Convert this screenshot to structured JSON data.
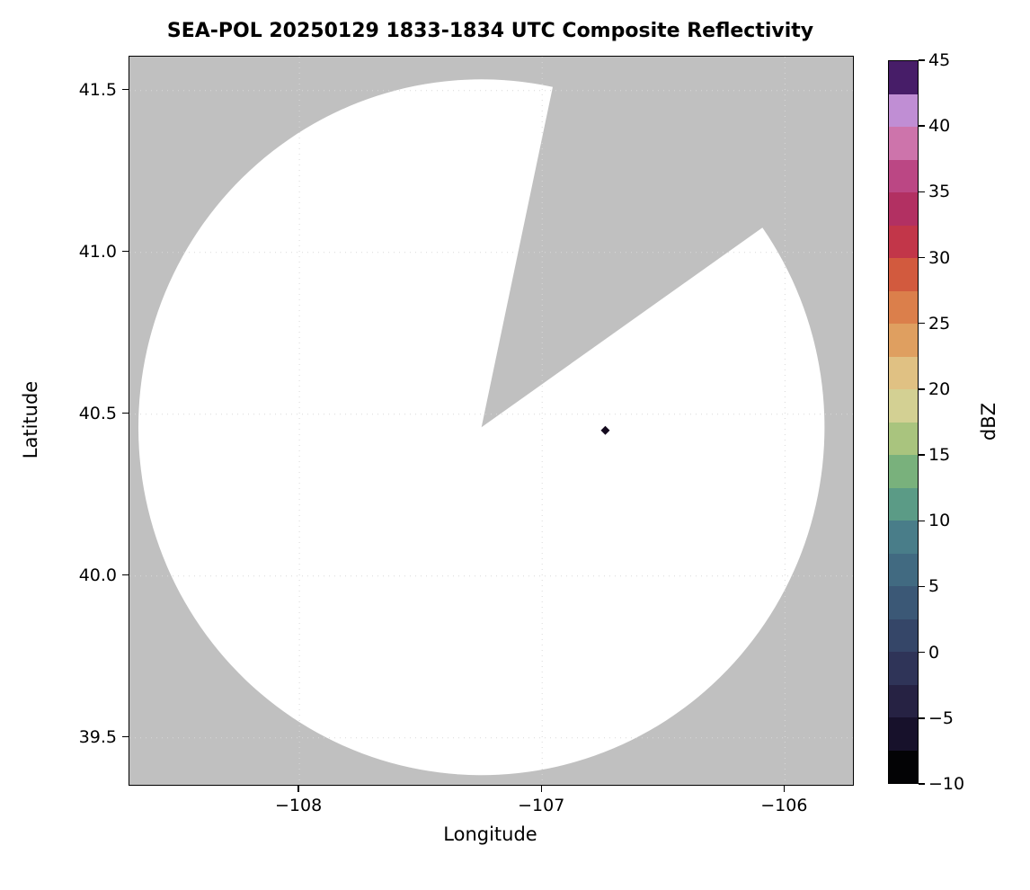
{
  "chart_data": {
    "type": "radar_composite_reflectivity_map",
    "title": "SEA-POL 20250129 1833-1834 UTC Composite Reflectivity",
    "xlabel": "Longitude",
    "ylabel": "Latitude",
    "xlim": [
      -108.7,
      -105.72
    ],
    "ylim": [
      39.355,
      41.605
    ],
    "grid": true,
    "xticks": {
      "values": [
        -108,
        -107,
        -106
      ],
      "labels": [
        "−108",
        "−107",
        "−106"
      ]
    },
    "yticks": {
      "values": [
        41.5,
        41.0,
        40.5,
        40.0,
        39.5
      ],
      "labels": [
        "41.5",
        "41.0",
        "40.5",
        "40.0",
        "39.5"
      ]
    },
    "no_data_color": "#c0c0c0",
    "coverage": {
      "center_lon": -107.25,
      "center_lat": 40.46,
      "radius_deg_lat": 1.075,
      "missing_sector_azimuth_start_deg": 12,
      "missing_sector_azimuth_end_deg": 55,
      "fill_color": "#ffffff"
    },
    "echoes": [
      {
        "lon": -106.74,
        "lat": 40.45,
        "marker": "diamond",
        "color": "#140a1e"
      }
    ],
    "colorbar": {
      "label": "dBZ",
      "min": -10,
      "max": 45,
      "tick_values": [
        45,
        40,
        35,
        30,
        25,
        20,
        15,
        10,
        5,
        0,
        -5,
        -10
      ],
      "tick_labels": [
        "45",
        "40",
        "35",
        "30",
        "25",
        "20",
        "15",
        "10",
        "5",
        "0",
        "−5",
        "−10"
      ],
      "colors_bottom_to_top": [
        "#030305",
        "#17112b",
        "#262243",
        "#2f3458",
        "#354668",
        "#3b5876",
        "#416a81",
        "#497d89",
        "#5b9b86",
        "#79b17c",
        "#a9c47e",
        "#d3d093",
        "#e0c183",
        "#df9f60",
        "#db7f4b",
        "#d25a3e",
        "#c23649",
        "#b23062",
        "#bb4784",
        "#cd74ab",
        "#c08ed4",
        "#471d68"
      ]
    }
  }
}
